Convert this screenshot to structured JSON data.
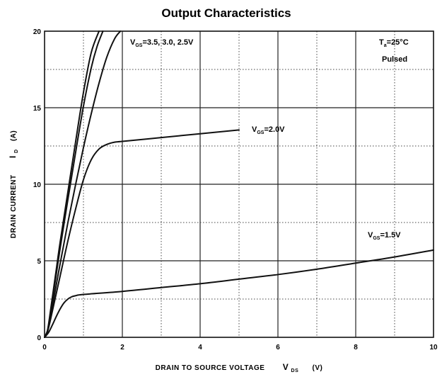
{
  "chart_data": {
    "type": "line",
    "title": "Output Characteristics",
    "xlabel": {
      "text": "DRAIN TO SOURCE VOLTAGE",
      "symbol": "V",
      "subscript": "DS",
      "unit": "(V)"
    },
    "ylabel": {
      "text": "DRAIN CURRENT",
      "symbol": "I",
      "subscript": "D",
      "unit": "(A)"
    },
    "xlim": [
      0,
      10
    ],
    "ylim": [
      0,
      20
    ],
    "x_ticks": [
      "0",
      "2",
      "4",
      "6",
      "8",
      "10"
    ],
    "y_ticks": [
      "0",
      "5",
      "10",
      "15",
      "20"
    ],
    "grid": true,
    "annotations": {
      "conditions_line1": "T",
      "conditions_line1_sub": "a",
      "conditions_line1_rest": "=25°C",
      "conditions_line2": "Pulsed",
      "vgs_high_symbol": "V",
      "vgs_high_sub": "GS",
      "vgs_high_values": "=3.5,  3.0,  2.5V",
      "vgs_mid_symbol": "V",
      "vgs_mid_sub": "GS",
      "vgs_mid_value": "=2.0V",
      "vgs_low_symbol": "V",
      "vgs_low_sub": "GS",
      "vgs_low_value": "=1.5V"
    },
    "series": [
      {
        "name": "VGS=3.5V",
        "x": [
          0,
          0.05,
          0.1,
          0.2,
          0.3,
          0.4,
          0.6,
          0.8,
          1.0,
          1.2,
          1.4
        ],
        "y": [
          0,
          0.2,
          0.8,
          2.6,
          4.4,
          6.2,
          9.5,
          12.8,
          16.0,
          18.6,
          20.0
        ]
      },
      {
        "name": "VGS=3.0V",
        "x": [
          0,
          0.05,
          0.1,
          0.2,
          0.3,
          0.4,
          0.6,
          0.8,
          1.0,
          1.2,
          1.35,
          1.5
        ],
        "y": [
          0,
          0.2,
          0.7,
          2.4,
          4.1,
          5.8,
          9.0,
          12.1,
          15.1,
          17.6,
          19.0,
          20.0
        ]
      },
      {
        "name": "VGS=2.5V",
        "x": [
          0,
          0.05,
          0.1,
          0.2,
          0.4,
          0.6,
          0.8,
          1.0,
          1.2,
          1.4,
          1.6,
          1.8,
          1.95
        ],
        "y": [
          0,
          0.2,
          0.6,
          2.0,
          4.8,
          7.5,
          10.0,
          12.4,
          14.6,
          16.6,
          18.3,
          19.5,
          20.0
        ]
      },
      {
        "name": "VGS=2.0V",
        "x": [
          0,
          0.1,
          0.2,
          0.4,
          0.6,
          0.8,
          1.0,
          1.2,
          1.4,
          1.6,
          1.8,
          2.0,
          3.0,
          4.0,
          5.0
        ],
        "y": [
          0,
          0.6,
          1.7,
          4.0,
          6.3,
          8.4,
          10.3,
          11.6,
          12.3,
          12.6,
          12.75,
          12.8,
          13.05,
          13.3,
          13.55
        ]
      },
      {
        "name": "VGS=1.5V",
        "x": [
          0,
          0.1,
          0.2,
          0.3,
          0.4,
          0.5,
          0.6,
          0.7,
          0.8,
          1.0,
          2.0,
          3.0,
          4.0,
          5.0,
          6.0,
          7.0,
          8.0,
          9.0,
          10.0
        ],
        "y": [
          0,
          0.3,
          0.8,
          1.35,
          1.85,
          2.25,
          2.5,
          2.65,
          2.72,
          2.8,
          3.0,
          3.25,
          3.5,
          3.8,
          4.1,
          4.45,
          4.85,
          5.25,
          5.7
        ]
      }
    ]
  }
}
